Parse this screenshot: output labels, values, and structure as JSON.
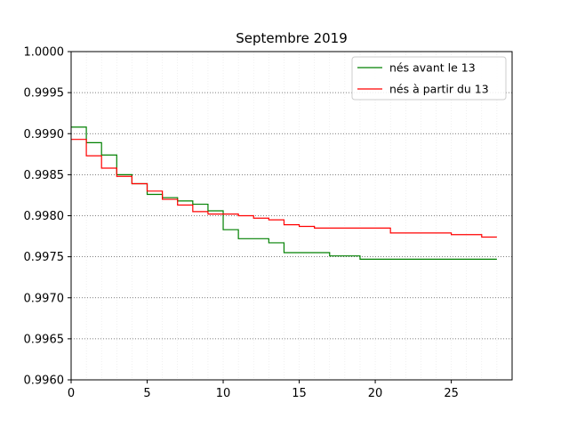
{
  "chart_data": {
    "type": "line",
    "step": "post",
    "title": "Septembre 2019",
    "xlabel": "",
    "ylabel": "",
    "xlim": [
      0,
      29
    ],
    "ylim": [
      0.996,
      1.0
    ],
    "xticks": [
      0,
      5,
      10,
      15,
      20,
      25
    ],
    "xtick_labels": [
      "0",
      "5",
      "10",
      "15",
      "20",
      "25"
    ],
    "yticks": [
      0.996,
      0.9965,
      0.997,
      0.9975,
      0.998,
      0.9985,
      0.999,
      0.9995,
      1.0
    ],
    "ytick_labels": [
      "0.9960",
      "0.9965",
      "0.9970",
      "0.9975",
      "0.9980",
      "0.9985",
      "0.9990",
      "0.9995",
      "1.0000"
    ],
    "grid": {
      "y_major": true,
      "x_minor": true,
      "style": "dotted"
    },
    "legend_position": "top-right",
    "series": [
      {
        "name": "nés avant le 13",
        "color": "#008000",
        "x": [
          0,
          1,
          2,
          3,
          4,
          5,
          6,
          7,
          8,
          9,
          10,
          11,
          12,
          13,
          14,
          15,
          16,
          17,
          18,
          19,
          20,
          21,
          22,
          23,
          24,
          25,
          26,
          27,
          28
        ],
        "y": [
          0.99908,
          0.99889,
          0.99874,
          0.9985,
          0.99839,
          0.99826,
          0.99822,
          0.99818,
          0.99814,
          0.99806,
          0.99783,
          0.99772,
          0.99772,
          0.99767,
          0.99755,
          0.99755,
          0.99755,
          0.99751,
          0.99751,
          0.99747,
          0.99747,
          0.99747,
          0.99747,
          0.99747,
          0.99747,
          0.99747,
          0.99747,
          0.99747,
          0.99747
        ]
      },
      {
        "name": "nés à partir du 13",
        "color": "#ff0000",
        "x": [
          0,
          1,
          2,
          3,
          4,
          5,
          6,
          7,
          8,
          9,
          10,
          11,
          12,
          13,
          14,
          15,
          16,
          17,
          18,
          19,
          20,
          21,
          22,
          23,
          24,
          25,
          26,
          27,
          28
        ],
        "y": [
          0.99893,
          0.99873,
          0.99858,
          0.99848,
          0.99839,
          0.9983,
          0.9982,
          0.99813,
          0.99805,
          0.99802,
          0.99802,
          0.998,
          0.99797,
          0.99795,
          0.99789,
          0.99787,
          0.99785,
          0.99785,
          0.99785,
          0.99785,
          0.99785,
          0.99779,
          0.99779,
          0.99779,
          0.99779,
          0.99777,
          0.99777,
          0.99774,
          0.99774
        ]
      }
    ]
  }
}
